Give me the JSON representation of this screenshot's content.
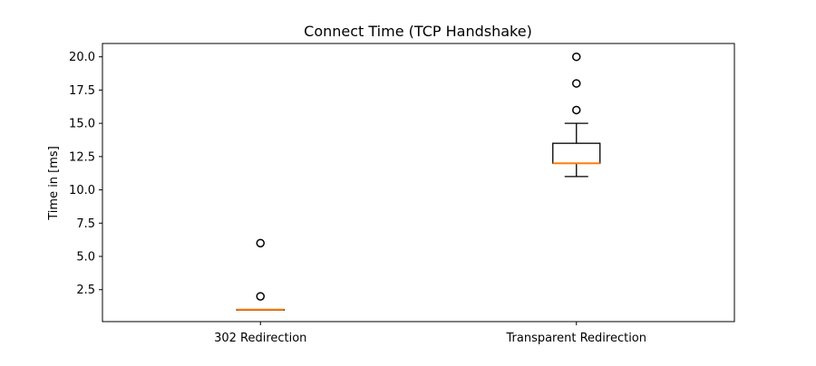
{
  "chart_data": {
    "type": "box",
    "title": "Connect Time (TCP Handshake)",
    "xlabel": "",
    "ylabel": "Time in [ms]",
    "ylim": [
      0.1,
      21.0
    ],
    "yticks": [
      2.5,
      5.0,
      7.5,
      10.0,
      12.5,
      15.0,
      17.5,
      20.0
    ],
    "ytick_labels": [
      "2.5",
      "5.0",
      "7.5",
      "10.0",
      "12.5",
      "15.0",
      "17.5",
      "20.0"
    ],
    "categories": [
      "302 Redirection",
      "Transparent Redirection"
    ],
    "boxes": [
      {
        "name": "302 Redirection",
        "whisker_low": 1.0,
        "q1": 1.0,
        "median": 1.0,
        "q3": 1.0,
        "whisker_high": 1.0,
        "outliers": [
          2.0,
          6.0
        ]
      },
      {
        "name": "Transparent Redirection",
        "whisker_low": 11.0,
        "q1": 12.0,
        "median": 12.0,
        "q3": 13.5,
        "whisker_high": 15.0,
        "outliers": [
          16.0,
          18.0,
          20.0
        ]
      }
    ],
    "grid": false,
    "colors": {
      "box": "#000000",
      "median": "#ff7f0e",
      "outlier": "#000000"
    }
  }
}
